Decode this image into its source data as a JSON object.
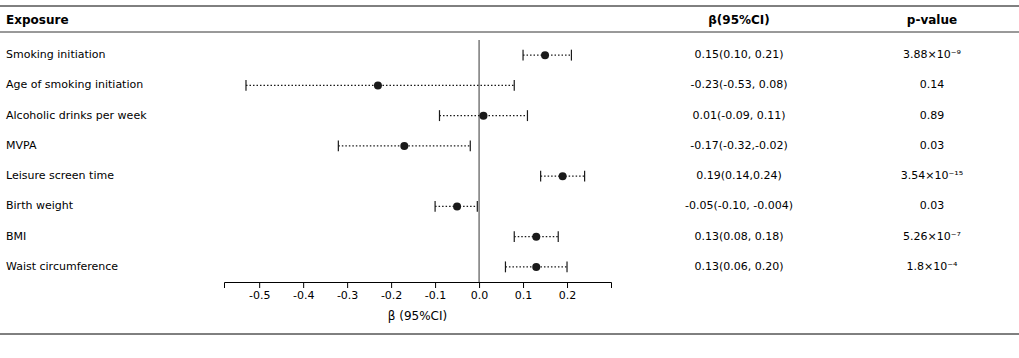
{
  "chart_data": {
    "type": "forest",
    "categories": [
      "Smoking initiation",
      "Age of smoking initiation",
      "Alcoholic drinks per week",
      "MVPA",
      "Leisure screen time",
      "Birth weight",
      "BMI",
      "Waist circumference"
    ],
    "values": [
      0.15,
      -0.23,
      0.01,
      -0.17,
      0.19,
      -0.05,
      0.13,
      0.13
    ],
    "ci_low": [
      0.1,
      -0.53,
      -0.09,
      -0.32,
      0.14,
      -0.1,
      0.08,
      0.06
    ],
    "ci_high": [
      0.21,
      0.08,
      0.11,
      -0.02,
      0.24,
      -0.004,
      0.18,
      0.2
    ],
    "value_labels": [
      "0.15(0.10, 0.21)",
      "-0.23(-0.53, 0.08)",
      "0.01(-0.09, 0.11)",
      "-0.17(-0.32,-0.02)",
      "0.19(0.14,0.24)",
      "-0.05(-0.10, -0.004)",
      "0.13(0.08, 0.18)",
      "0.13(0.06, 0.20)"
    ],
    "p_value_labels": [
      "3.88×10⁻⁹",
      "0.14",
      "0.89",
      "0.03",
      "3.54×10⁻¹⁵",
      "0.03",
      "5.26×10⁻⁷",
      "1.8×10⁻⁴"
    ],
    "column_headers": [
      "Exposure",
      "β(95%CI)",
      "p-value"
    ],
    "xlabel": "β (95%CI)",
    "xlim": [
      -0.58,
      0.3
    ],
    "xticks": [
      -0.5,
      -0.4,
      -0.3,
      -0.2,
      -0.1,
      {
        "value": 0,
        "label": "0.0"
      },
      0.1,
      0.2
    ],
    "ref_line": 0,
    "color": "#1a1a1a",
    "marker": "circle",
    "line_style": "dotted",
    "grid": false,
    "tick_labels": "x"
  }
}
